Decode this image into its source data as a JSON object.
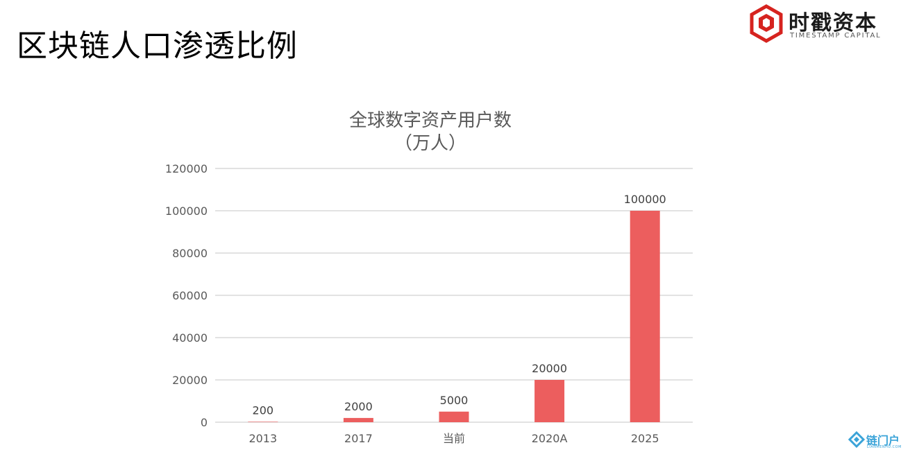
{
  "slide": {
    "title": "区块链人口渗透比例"
  },
  "logo": {
    "name": "时戳资本",
    "subtitle": "TIMESTAMP CAPITAL",
    "icon": "hexagon-cube-logo"
  },
  "watermark": {
    "name": "链门户",
    "sub": "LIANMENHU.COM"
  },
  "colors": {
    "bar": "#ec5e5e",
    "grid": "#d9d9d9",
    "logo_red": "#d6231f",
    "axis_text": "#595959"
  },
  "chart_data": {
    "type": "bar",
    "title": "全球数字资产用户数",
    "subtitle": "（万人）",
    "categories": [
      "2013",
      "2017",
      "当前",
      "2020A",
      "2025"
    ],
    "values": [
      200,
      2000,
      5000,
      20000,
      100000
    ],
    "data_labels": [
      "200",
      "2000",
      "5000",
      "20000",
      "100000"
    ],
    "y_ticks": [
      "0",
      "20000",
      "40000",
      "60000",
      "80000",
      "100000",
      "120000"
    ],
    "ylim": [
      0,
      120000
    ],
    "grid": true,
    "legend": false
  }
}
